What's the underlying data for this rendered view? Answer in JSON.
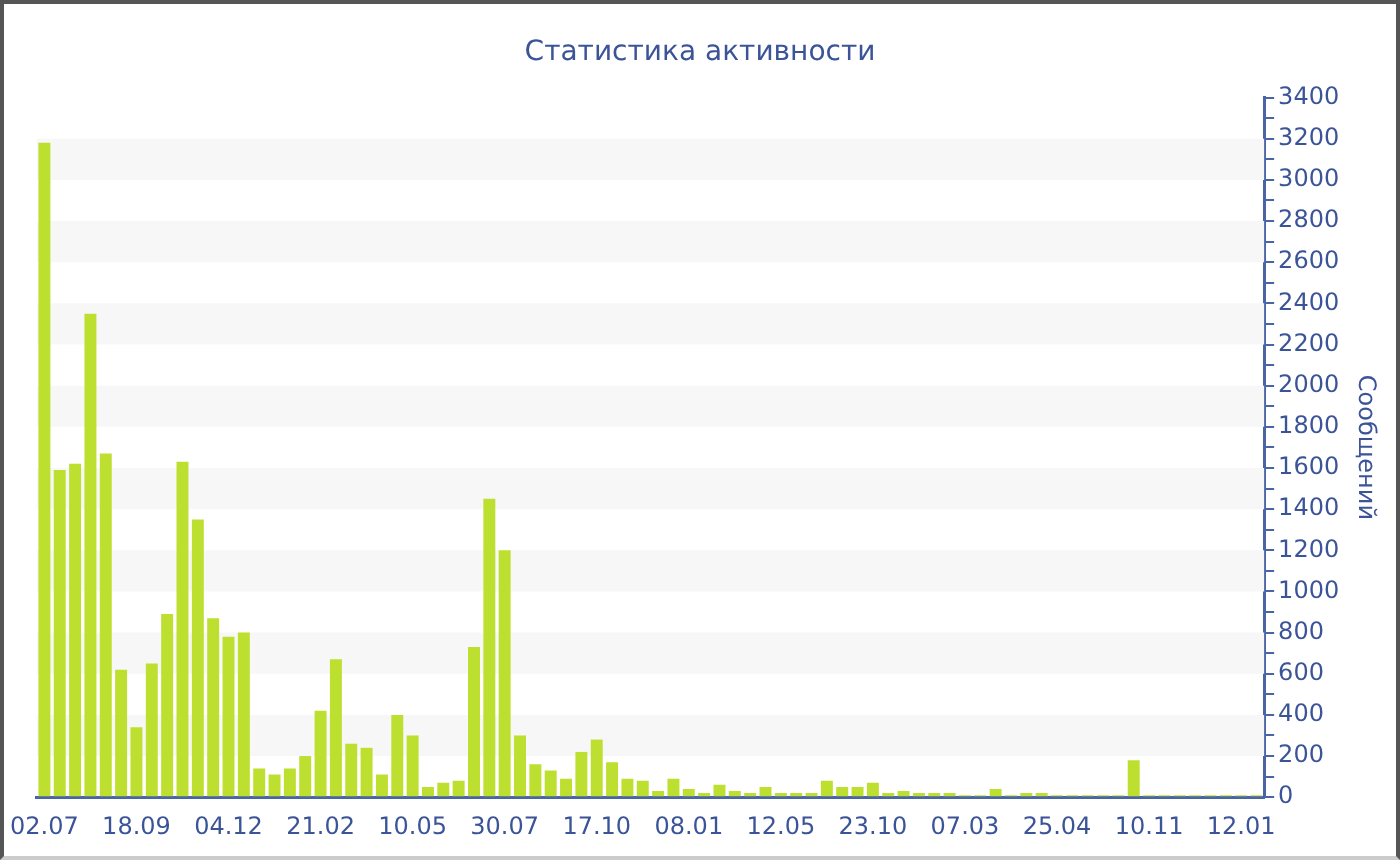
{
  "chart_data": {
    "type": "bar",
    "title": "Статистика активности",
    "ylabel": "Сообщений",
    "categories": [
      "02.07",
      null,
      null,
      null,
      null,
      null,
      "18.09",
      null,
      null,
      null,
      null,
      null,
      "04.12",
      null,
      null,
      null,
      null,
      null,
      "21.02",
      null,
      null,
      null,
      null,
      null,
      "10.05",
      null,
      null,
      null,
      null,
      null,
      "30.07",
      null,
      null,
      null,
      null,
      null,
      "17.10",
      null,
      null,
      null,
      null,
      null,
      "08.01",
      null,
      null,
      null,
      null,
      null,
      "12.05",
      null,
      null,
      null,
      null,
      null,
      "23.10",
      null,
      null,
      null,
      null,
      null,
      "07.03",
      null,
      null,
      null,
      null,
      null,
      "25.04",
      null,
      null,
      null,
      null,
      null,
      "10.11",
      null,
      null,
      null,
      null,
      null,
      "12.01",
      null
    ],
    "values": [
      3180,
      1590,
      1620,
      2350,
      1670,
      620,
      340,
      650,
      890,
      1630,
      1350,
      870,
      780,
      800,
      140,
      110,
      140,
      200,
      420,
      670,
      260,
      240,
      110,
      400,
      300,
      50,
      70,
      80,
      730,
      1450,
      1200,
      300,
      160,
      130,
      90,
      220,
      280,
      170,
      90,
      80,
      30,
      90,
      40,
      20,
      60,
      30,
      20,
      50,
      20,
      20,
      20,
      80,
      50,
      50,
      70,
      20,
      30,
      20,
      20,
      20,
      10,
      10,
      40,
      10,
      20,
      20,
      10,
      10,
      10,
      10,
      10,
      180,
      10,
      10,
      10,
      10,
      10,
      10,
      10,
      10
    ],
    "color": "#bde030",
    "ylim": [
      0,
      3400
    ],
    "yticks": [
      0,
      {
        "value": 100,
        "label": null
      },
      200,
      {
        "value": 300,
        "label": null
      },
      400,
      {
        "value": 500,
        "label": null
      },
      600,
      {
        "value": 700,
        "label": null
      },
      800,
      {
        "value": 900,
        "label": null
      },
      1000,
      {
        "value": 1100,
        "label": null
      },
      1200,
      {
        "value": 1300,
        "label": null
      },
      1400,
      {
        "value": 1500,
        "label": null
      },
      1600,
      {
        "value": 1700,
        "label": null
      },
      1800,
      {
        "value": 1900,
        "label": null
      },
      2000,
      {
        "value": 2100,
        "label": null
      },
      2200,
      {
        "value": 2300,
        "label": null
      },
      2400,
      {
        "value": 2500,
        "label": null
      },
      2600,
      {
        "value": 2700,
        "label": null
      },
      2800,
      {
        "value": 2900,
        "label": null
      },
      3000,
      {
        "value": 3100,
        "label": null
      },
      3200,
      {
        "value": 3300,
        "label": null
      },
      3400
    ],
    "bands": [
      {
        "axis": "y",
        "from": 200,
        "to": 400,
        "color": "#f7f7f7"
      },
      {
        "axis": "y",
        "from": 600,
        "to": 800,
        "color": "#f7f7f7"
      },
      {
        "axis": "y",
        "from": 1000,
        "to": 1200,
        "color": "#f7f7f7"
      },
      {
        "axis": "y",
        "from": 1400,
        "to": 1600,
        "color": "#f7f7f7"
      },
      {
        "axis": "y",
        "from": 1800,
        "to": 2000,
        "color": "#f7f7f7"
      },
      {
        "axis": "y",
        "from": 2200,
        "to": 2400,
        "color": "#f7f7f7"
      },
      {
        "axis": "y",
        "from": 2600,
        "to": 2800,
        "color": "#f7f7f7"
      },
      {
        "axis": "y",
        "from": 3000,
        "to": 3200,
        "color": "#f7f7f7"
      }
    ]
  }
}
